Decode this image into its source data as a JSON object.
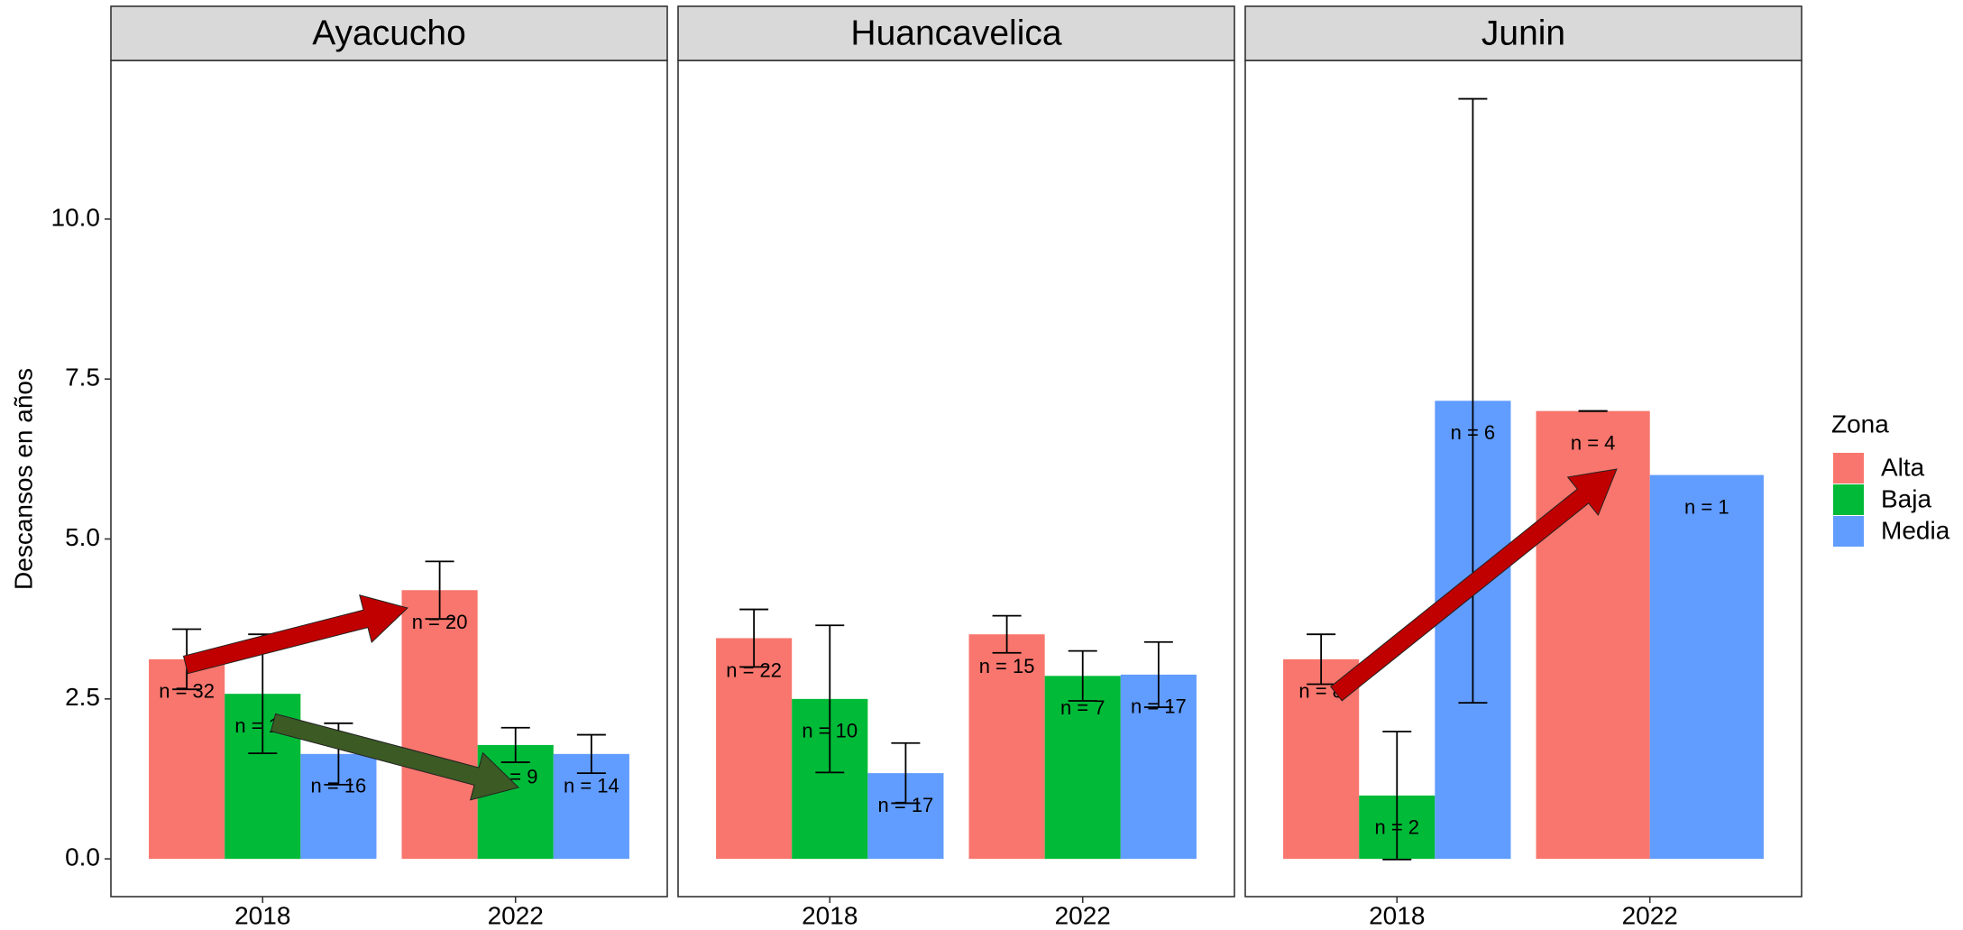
{
  "chart_data": {
    "type": "bar",
    "y_label": "Descansos en años",
    "legend_title": "Zona",
    "legend": "right",
    "grid": false,
    "categories": [
      "2018",
      "2022"
    ],
    "series": [
      {
        "name": "Alta",
        "color": "#F8766D"
      },
      {
        "name": "Baja",
        "color": "#00BA38"
      },
      {
        "name": "Media",
        "color": "#619CFF"
      }
    ],
    "ylim": [
      -0.59,
      12.48
    ],
    "yticks": [
      {
        "value": 0,
        "label": "0.0"
      },
      {
        "value": 2.5,
        "label": "2.5"
      },
      {
        "value": 5,
        "label": "5.0"
      },
      {
        "value": 7.5,
        "label": "7.5"
      },
      {
        "value": 10,
        "label": "10.0"
      }
    ],
    "facets": [
      {
        "title": "Ayacucho",
        "series": [
          {
            "values": [
              3.12,
              4.2
            ],
            "errors": [
              0.47,
              0.45
            ],
            "labels": [
              "n = 32",
              "n = 20"
            ]
          },
          {
            "values": [
              2.58,
              1.78
            ],
            "errors": [
              0.93,
              0.27
            ],
            "labels": [
              "n = 12",
              "n = 9"
            ]
          },
          {
            "values": [
              1.64,
              1.64
            ],
            "errors": [
              0.48,
              0.3
            ],
            "labels": [
              "n = 16",
              "n = 14"
            ]
          }
        ]
      },
      {
        "title": "Huancavelica",
        "series": [
          {
            "values": [
              3.45,
              3.51
            ],
            "errors": [
              0.45,
              0.29
            ],
            "labels": [
              "n = 22",
              "n = 15"
            ]
          },
          {
            "values": [
              2.5,
              2.86
            ],
            "errors": [
              1.15,
              0.39
            ],
            "labels": [
              "n = 10",
              "n = 7"
            ]
          },
          {
            "values": [
              1.34,
              2.88
            ],
            "errors": [
              0.47,
              0.51
            ],
            "labels": [
              "n = 17",
              "n = 17"
            ]
          }
        ]
      },
      {
        "title": "Junin",
        "series": [
          {
            "values": [
              3.12,
              7.0
            ],
            "errors": [
              0.39,
              0
            ],
            "labels": [
              "n = 8",
              "n = 4"
            ]
          },
          {
            "values": [
              0.99,
              null
            ],
            "errors": [
              1.0,
              null
            ],
            "labels": [
              "n = 2",
              null
            ]
          },
          {
            "values": [
              7.16,
              6.0
            ],
            "errors": [
              4.72,
              null
            ],
            "labels": [
              "n = 6",
              "n = 1"
            ]
          }
        ]
      }
    ]
  }
}
